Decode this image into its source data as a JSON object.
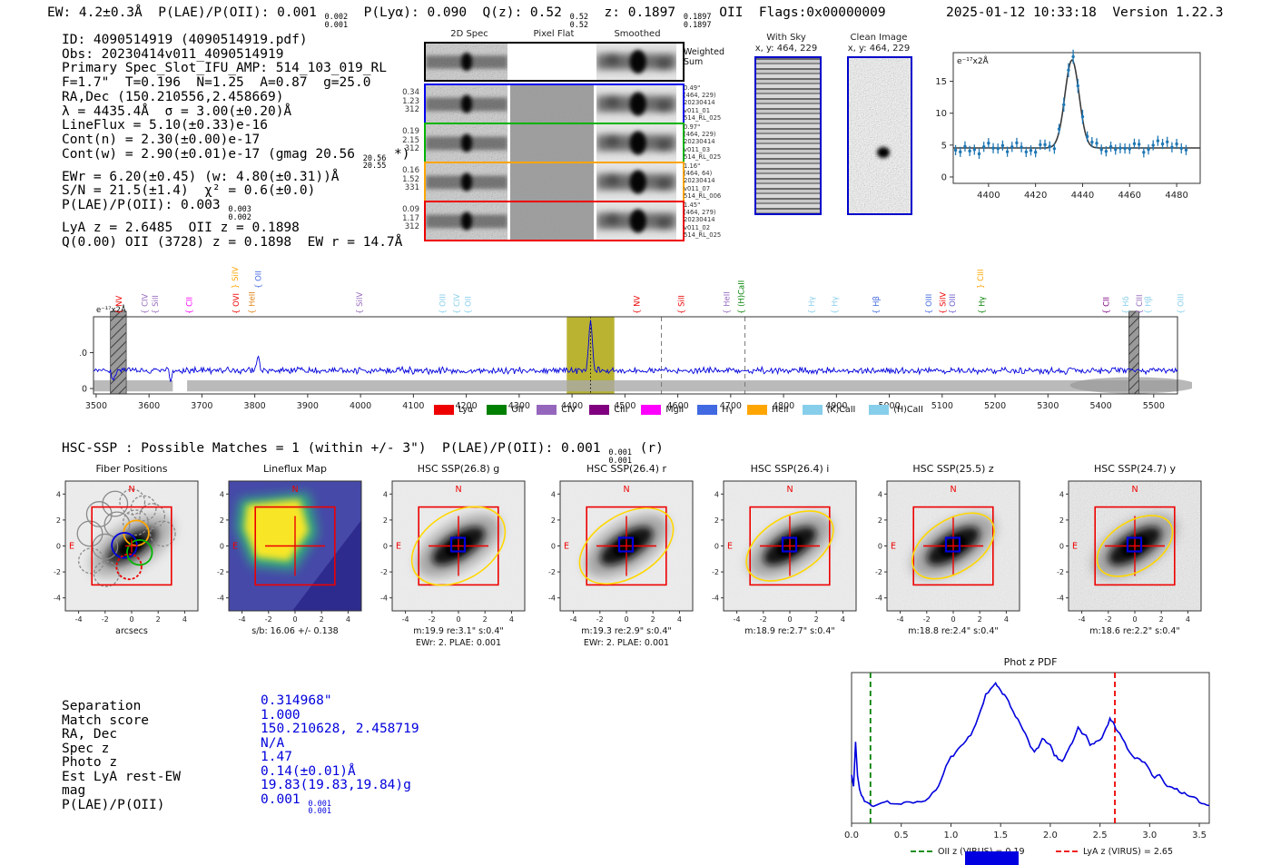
{
  "header": {
    "left_segments": [
      {
        "t": "EW: 4.2±0.3Å  P(LAE)/P(OII): 0.001 "
      },
      {
        "frac": [
          "0.002",
          "0.001"
        ]
      },
      {
        "t": "  P(Lyα): 0.090  Q(z): 0.52 "
      },
      {
        "frac": [
          "0.52",
          "0.52"
        ]
      },
      {
        "t": "  z: 0.1897 "
      },
      {
        "frac": [
          "0.1897",
          "0.1897"
        ]
      },
      {
        "t": " OII  Flags:0x00000009"
      }
    ],
    "right": "2025-01-12 10:33:18  Version 1.22.3"
  },
  "info_block": {
    "lines": [
      [
        {
          "t": "ID: 4090514919 (4090514919.pdf)"
        }
      ],
      [
        {
          "t": "Obs: 20230414v011_4090514919"
        }
      ],
      [
        {
          "t": "Primary Spec_Slot_IFU_AMP: 514_103_019_RL"
        }
      ],
      [
        {
          "t": "F=1.7\"  T=0.196  N=1.25  A=0.87  g=25.0"
        }
      ],
      [
        {
          "t": "RA,Dec (150.210556,2.458669)"
        }
      ],
      [
        {
          "t": "λ = 4435.4Å  σ = 3.00(±0.20)Å"
        }
      ],
      [
        {
          "t": "LineFlux = 5.10(±0.33)e-16"
        }
      ],
      [
        {
          "t": "Cont(n) = 2.30(±0.00)e-17"
        }
      ],
      [
        {
          "t": "Cont(w) = 2.90(±0.01)e-17 (gmag 20.56 "
        },
        {
          "frac": [
            "20.56",
            "20.55"
          ]
        },
        {
          "t": " *)"
        }
      ],
      [
        {
          "t": "EWr = 6.20(±0.45) (w: 4.80(±0.31))Å"
        }
      ],
      [
        {
          "t": "S/N = 21.5(±1.4)  χ² = 0.6(±0.0)"
        }
      ],
      [
        {
          "t": "P(LAE)/P(OII): 0.003 "
        },
        {
          "frac": [
            "0.003",
            "0.002"
          ]
        }
      ],
      [
        {
          "t": "LyA z = 2.6485  OII z = 0.1898"
        }
      ],
      [
        {
          "t": "Q(0.00) OII (3728) z = 0.1898  EW r = 14.7Å"
        }
      ]
    ]
  },
  "spec2d": {
    "col_headers": [
      "2D Spec",
      "Pixel Flat",
      "Smoothed"
    ],
    "rows": [
      {
        "color": "#000000",
        "left": [],
        "right": [
          "Weighted",
          "Sum"
        ]
      },
      {
        "color": "#0000ee",
        "left": [
          "0.34",
          "1.23",
          "312"
        ],
        "right": [
          "0.49\"",
          "(464, 229)",
          "20230414",
          "v011_01",
          "514_RL_025"
        ]
      },
      {
        "color": "#00b400",
        "left": [
          "0.19",
          "2.15",
          "312"
        ],
        "right": [
          "0.97\"",
          "(464, 229)",
          "20230414",
          "v011_03",
          "514_RL_025"
        ]
      },
      {
        "color": "#ffa500",
        "left": [
          "0.16",
          "1.52",
          "331"
        ],
        "right": [
          "1.16\"",
          "(464, 64)",
          "20230414",
          "v011_07",
          "514_RL_006"
        ]
      },
      {
        "color": "#ee0000",
        "left": [
          "0.09",
          "1.17",
          "312"
        ],
        "right": [
          "1.45\"",
          "(464, 279)",
          "20230414",
          "v011_02",
          "514_RL_025"
        ]
      }
    ]
  },
  "cutout2d": {
    "with_sky": {
      "title": "With Sky",
      "subtitle": "x, y: 464, 229"
    },
    "clean": {
      "title": "Clean Image",
      "subtitle": "x, y: 464, 229"
    }
  },
  "hsc_line_segments": [
    {
      "t": "HSC-SSP : Possible Matches = 1 (within +/- 3\")  P(LAE)/P(OII): 0.001 "
    },
    {
      "frac": [
        "0.001",
        "0.001"
      ]
    },
    {
      "t": " (r)"
    }
  ],
  "spectrum_legend": [
    {
      "label": "Lyα",
      "color": "#ee0000"
    },
    {
      "label": "OII",
      "color": "#008000"
    },
    {
      "label": "CIV",
      "color": "#9467bd"
    },
    {
      "label": "CIII",
      "color": "#800080"
    },
    {
      "label": "MgII",
      "color": "#ff00ff"
    },
    {
      "label": "Hγ",
      "color": "#4169e1"
    },
    {
      "label": "HeII",
      "color": "#ffa500"
    },
    {
      "label": "(K)CaII",
      "color": "#87ceeb"
    },
    {
      "label": "(H)CaII",
      "color": "#87ceeb"
    }
  ],
  "cutouts": {
    "ticks": [
      -4,
      -2,
      0,
      2,
      4
    ],
    "compass": {
      "n": "N",
      "e": "E"
    },
    "panels": [
      {
        "kind": "fiber",
        "title": "Fiber Positions",
        "footer1": "arcsecs",
        "footer2": ""
      },
      {
        "kind": "lineflux",
        "title": "Lineflux Map",
        "footer1": "s/b: 16.06 +/- 0.138",
        "footer2": ""
      },
      {
        "kind": "galaxy",
        "title": "HSC SSP(26.8) g",
        "footer1": "m:19.9 re:3.1\" s:0.4\"",
        "footer2": "EWr: 2. PLAE: 0.001",
        "noise": 0.1,
        "ellipse": [
          56,
          37
        ]
      },
      {
        "kind": "galaxy",
        "title": "HSC SSP(26.4) r",
        "footer1": "m:19.3 re:2.9\" s:0.4\"",
        "footer2": "EWr: 2. PLAE: 0.001",
        "noise": 0.1,
        "ellipse": [
          57,
          34
        ]
      },
      {
        "kind": "galaxy",
        "title": "HSC SSP(26.4) i",
        "footer1": "m:18.9 re:2.7\" s:0.4\"",
        "footer2": "",
        "noise": 0.13,
        "ellipse": [
          53,
          31
        ]
      },
      {
        "kind": "galaxy",
        "title": "HSC SSP(25.5) z",
        "footer1": "m:18.8 re:2.4\" s:0.4\"",
        "footer2": "",
        "noise": 0.24,
        "ellipse": [
          50,
          29
        ]
      },
      {
        "kind": "galaxy",
        "title": "HSC SSP(24.7) y",
        "footer1": "m:18.6 re:2.2\" s:0.4\"",
        "footer2": "",
        "noise": 0.42,
        "ellipse": [
          46,
          27
        ]
      }
    ]
  },
  "match_table": {
    "value_color": "#0000dd",
    "rows": [
      {
        "label": "Separation",
        "value": [
          {
            "t": "0.314968\""
          }
        ]
      },
      {
        "label": "Match score",
        "value": [
          {
            "t": "1.000"
          }
        ]
      },
      {
        "label": "RA, Dec",
        "value": [
          {
            "t": "150.210628, 2.458719"
          }
        ]
      },
      {
        "label": "Spec z",
        "value": [
          {
            "t": "N/A"
          }
        ]
      },
      {
        "label": "Photo z",
        "value": [
          {
            "t": "1.47"
          }
        ]
      },
      {
        "label": "Est LyA rest-EW",
        "value": [
          {
            "t": "0.14(±0.01)Å"
          }
        ]
      },
      {
        "label": "mag",
        "value": [
          {
            "t": "19.83(19.83,19.84)g"
          }
        ]
      },
      {
        "label": "P(LAE)/P(OII)",
        "value": [
          {
            "t": "0.001 "
          },
          {
            "frac": [
              "0.001",
              "0.001"
            ]
          }
        ]
      }
    ]
  },
  "chart_data": [
    {
      "id": "line_fit",
      "type": "line",
      "title": "",
      "ylabel_inside": "e⁻¹⁷x2Å",
      "x_range": [
        4385,
        4490
      ],
      "x_ticks": [
        4400,
        4420,
        4440,
        4460,
        4480
      ],
      "y_range": [
        -1,
        19.5
      ],
      "y_ticks": [
        0,
        5,
        10,
        15
      ],
      "baseline": 4.5,
      "noise_amp": 0.6,
      "err_bar": 0.8,
      "gauss": {
        "center": 4435.5,
        "sigma": 3.0,
        "amp": 13.8
      },
      "point_step": 2,
      "colors": {
        "points": "#1f77b4",
        "fit": "#3a3a3a"
      }
    },
    {
      "id": "full_spectrum",
      "type": "line",
      "ylabel_inside": "e⁻¹⁷x2Å",
      "x_range": [
        3495,
        5545
      ],
      "x_ticks": [
        3500,
        3600,
        3700,
        3800,
        3900,
        4000,
        4100,
        4200,
        4300,
        4400,
        4500,
        4600,
        4700,
        4800,
        4900,
        5000,
        5100,
        5200,
        5300,
        5400,
        5500
      ],
      "y_range": [
        -1.5,
        20
      ],
      "y_ticks": [
        0,
        10
      ],
      "baseline": 5.0,
      "noise_amp": 1.1,
      "gauss": {
        "center": 4435,
        "sigma": 3.4,
        "amp": 13.5
      },
      "bump": {
        "center": 3806,
        "sigma": 2.6,
        "amp": 4.3
      },
      "dips": [
        {
          "center": 3533,
          "sigma": 3.0,
          "amp": -2.6
        },
        {
          "center": 3641,
          "sigma": 2.0,
          "amp": -3.1
        }
      ],
      "highlight_band": [
        4390,
        4480
      ],
      "highlight_color": "#b3ad1f",
      "hatch_bands": [
        [
          3527,
          3557
        ],
        [
          5453,
          5472
        ]
      ],
      "dashed_lines": [
        4569,
        4727
      ],
      "dotted_line": 4435,
      "error_band": {
        "top": 2.3,
        "bottom": -0.8,
        "gap": [
          3645,
          3672
        ]
      },
      "line_color": "#0000dd",
      "line_labels": [
        {
          "label": "NV",
          "wl": 3548,
          "color": "#ee0000",
          "raised": false,
          "brace": "{"
        },
        {
          "label": "CIV",
          "wl": 3597,
          "color": "#9467bd",
          "raised": false,
          "brace": "{"
        },
        {
          "label": "SiII",
          "wl": 3617,
          "color": "#9467bd",
          "raised": false,
          "brace": "{"
        },
        {
          "label": "CII",
          "wl": 3681,
          "color": "#ff00ff",
          "raised": false,
          "brace": "{"
        },
        {
          "label": "OVI",
          "wl": 3770,
          "color": "#ee0000",
          "raised": false,
          "brace": "{"
        },
        {
          "label": "SiIV",
          "wl": 3768,
          "color": "#ffa500",
          "raised": true,
          "brace": "}"
        },
        {
          "label": "HeII",
          "wl": 3800,
          "color": "#e08214",
          "raised": false,
          "brace": "{"
        },
        {
          "label": "OII",
          "wl": 3812,
          "color": "#4169e1",
          "raised": true,
          "brace": "{"
        },
        {
          "label": "SiIV",
          "wl": 4003,
          "color": "#9467bd",
          "raised": false,
          "brace": "{"
        },
        {
          "label": "OIII",
          "wl": 4160,
          "color": "#87ceeb",
          "raised": false,
          "brace": "{"
        },
        {
          "label": "CIV",
          "wl": 4187,
          "color": "#87ceeb",
          "raised": false,
          "brace": "{"
        },
        {
          "label": "OII",
          "wl": 4208,
          "color": "#87ceeb",
          "raised": false,
          "brace": "{"
        },
        {
          "label": "NV",
          "wl": 4528,
          "color": "#ee0000",
          "raised": false,
          "brace": "{"
        },
        {
          "label": "SiII",
          "wl": 4612,
          "color": "#ee0000",
          "raised": false,
          "brace": "{"
        },
        {
          "label": "HeII",
          "wl": 4698,
          "color": "#9467bd",
          "raised": false,
          "brace": "{"
        },
        {
          "label": "(H)CaII",
          "wl": 4725,
          "color": "#008000",
          "raised": false,
          "brace": "{"
        },
        {
          "label": "Hγ",
          "wl": 4858,
          "color": "#87ceeb",
          "raised": false,
          "brace": "{"
        },
        {
          "label": "Hγ",
          "wl": 4902,
          "color": "#87ceeb",
          "raised": false,
          "brace": "{"
        },
        {
          "label": "Hβ",
          "wl": 4980,
          "color": "#4169e1",
          "raised": false,
          "brace": "{"
        },
        {
          "label": "OIII",
          "wl": 5080,
          "color": "#4169e1",
          "raised": false,
          "brace": "{"
        },
        {
          "label": "SiIV",
          "wl": 5106,
          "color": "#ee0000",
          "raised": false,
          "brace": "{"
        },
        {
          "label": "OIII",
          "wl": 5124,
          "color": "#6a5acd",
          "raised": false,
          "brace": "{"
        },
        {
          "label": "Hγ",
          "wl": 5180,
          "color": "#008000",
          "raised": false,
          "brace": "{"
        },
        {
          "label": "CIII",
          "wl": 5178,
          "color": "#ffa500",
          "raised": true,
          "brace": "}"
        },
        {
          "label": "CII",
          "wl": 5415,
          "color": "#800080",
          "raised": false,
          "brace": "{"
        },
        {
          "label": "Hδ",
          "wl": 5452,
          "color": "#87ceeb",
          "raised": false,
          "brace": "{"
        },
        {
          "label": "CIII",
          "wl": 5478,
          "color": "#9467bd",
          "raised": false,
          "brace": "{"
        },
        {
          "label": "Hβ",
          "wl": 5494,
          "color": "#87ceeb",
          "raised": false,
          "brace": "{"
        },
        {
          "label": "OIII",
          "wl": 5556,
          "color": "#87ceeb",
          "raised": false,
          "brace": "{"
        }
      ]
    },
    {
      "id": "photz_pdf",
      "type": "line",
      "title": "Phot z PDF",
      "x_range": [
        0.0,
        3.6
      ],
      "x_ticks": [
        0.0,
        0.5,
        1.0,
        1.5,
        2.0,
        2.5,
        3.0,
        3.5
      ],
      "line_color": "#0000dd",
      "points": [
        [
          0.0,
          0.3
        ],
        [
          0.02,
          0.22
        ],
        [
          0.04,
          0.52
        ],
        [
          0.06,
          0.3
        ],
        [
          0.08,
          0.2
        ],
        [
          0.1,
          0.16
        ],
        [
          0.13,
          0.12
        ],
        [
          0.18,
          0.1
        ],
        [
          0.22,
          0.09
        ],
        [
          0.3,
          0.11
        ],
        [
          0.36,
          0.12
        ],
        [
          0.42,
          0.1
        ],
        [
          0.5,
          0.1
        ],
        [
          0.55,
          0.11
        ],
        [
          0.62,
          0.11
        ],
        [
          0.7,
          0.12
        ],
        [
          0.78,
          0.14
        ],
        [
          0.85,
          0.2
        ],
        [
          0.9,
          0.26
        ],
        [
          0.95,
          0.36
        ],
        [
          1.0,
          0.42
        ],
        [
          1.05,
          0.45
        ],
        [
          1.1,
          0.5
        ],
        [
          1.15,
          0.54
        ],
        [
          1.2,
          0.57
        ],
        [
          1.25,
          0.65
        ],
        [
          1.3,
          0.74
        ],
        [
          1.35,
          0.85
        ],
        [
          1.4,
          0.89
        ],
        [
          1.45,
          0.92
        ],
        [
          1.48,
          0.9
        ],
        [
          1.52,
          0.86
        ],
        [
          1.56,
          0.83
        ],
        [
          1.6,
          0.77
        ],
        [
          1.65,
          0.7
        ],
        [
          1.7,
          0.65
        ],
        [
          1.75,
          0.58
        ],
        [
          1.8,
          0.5
        ],
        [
          1.84,
          0.46
        ],
        [
          1.88,
          0.48
        ],
        [
          1.92,
          0.55
        ],
        [
          1.96,
          0.52
        ],
        [
          2.0,
          0.51
        ],
        [
          2.04,
          0.44
        ],
        [
          2.08,
          0.41
        ],
        [
          2.12,
          0.4
        ],
        [
          2.16,
          0.44
        ],
        [
          2.2,
          0.5
        ],
        [
          2.24,
          0.55
        ],
        [
          2.28,
          0.62
        ],
        [
          2.32,
          0.58
        ],
        [
          2.36,
          0.57
        ],
        [
          2.4,
          0.51
        ],
        [
          2.44,
          0.51
        ],
        [
          2.48,
          0.53
        ],
        [
          2.52,
          0.56
        ],
        [
          2.56,
          0.61
        ],
        [
          2.6,
          0.68
        ],
        [
          2.63,
          0.66
        ],
        [
          2.66,
          0.62
        ],
        [
          2.7,
          0.58
        ],
        [
          2.75,
          0.52
        ],
        [
          2.8,
          0.45
        ],
        [
          2.85,
          0.42
        ],
        [
          2.9,
          0.41
        ],
        [
          2.95,
          0.38
        ],
        [
          3.0,
          0.33
        ],
        [
          3.05,
          0.28
        ],
        [
          3.1,
          0.3
        ],
        [
          3.15,
          0.24
        ],
        [
          3.2,
          0.22
        ],
        [
          3.25,
          0.21
        ],
        [
          3.3,
          0.19
        ],
        [
          3.35,
          0.17
        ],
        [
          3.4,
          0.15
        ],
        [
          3.45,
          0.14
        ],
        [
          3.5,
          0.12
        ],
        [
          3.55,
          0.1
        ],
        [
          3.6,
          0.09
        ]
      ],
      "vlines": [
        {
          "x": 0.19,
          "color": "#008000",
          "label": "OII z (VIRUS) = 0.19"
        },
        {
          "x": 2.65,
          "color": "#ee0000",
          "label": "LyA z (VIRUS) = 2.65"
        }
      ]
    }
  ]
}
